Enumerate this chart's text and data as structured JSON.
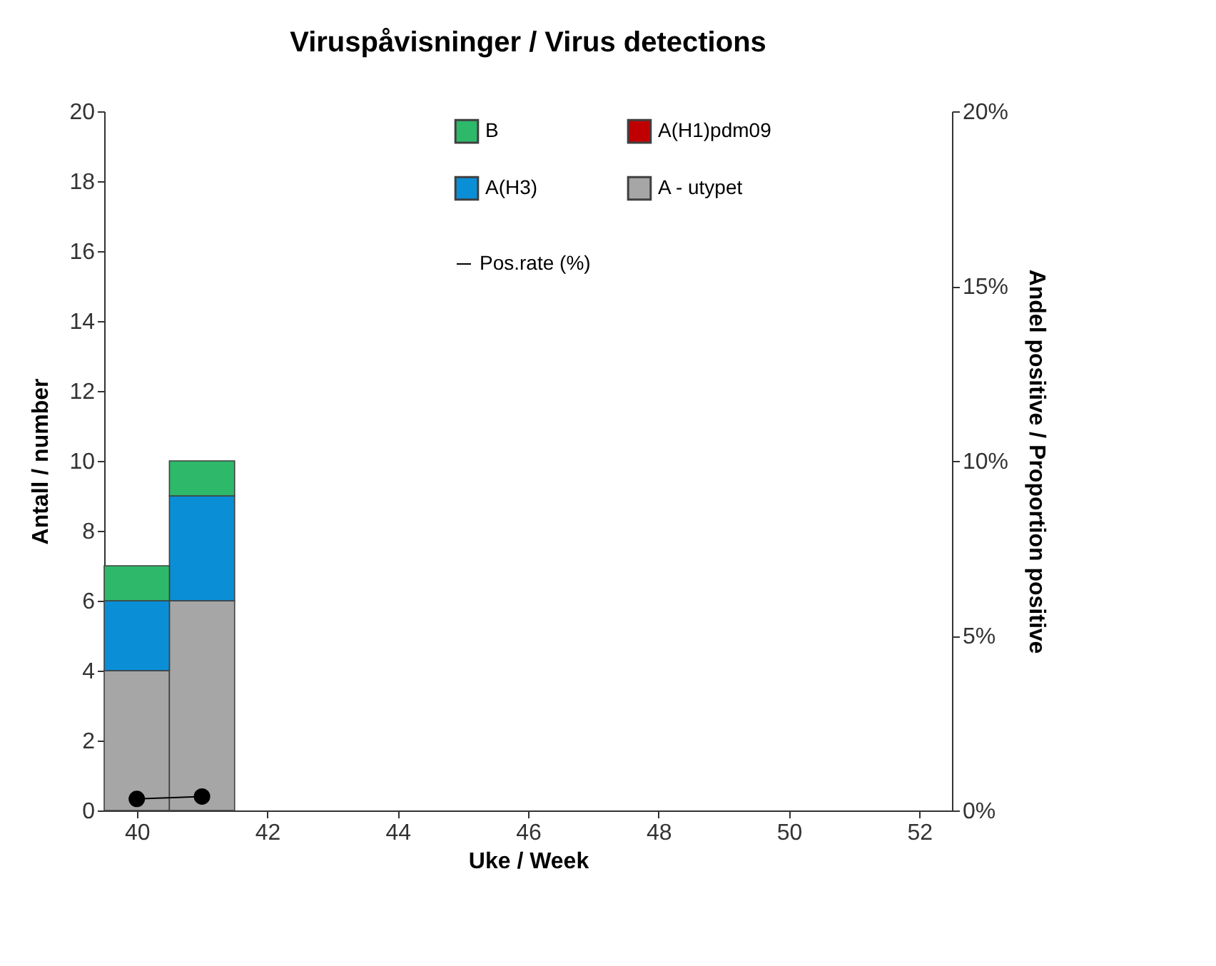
{
  "chart_data": {
    "type": "bar",
    "title": "Viruspåvisninger / Virus detections",
    "xlabel": "Uke / Week",
    "ylabel": "Antall / number",
    "y2label": "Andel positive / Proportion positive",
    "x": [
      40,
      41
    ],
    "stacked": true,
    "grid": false,
    "legend": "top right",
    "xlim": [
      39.5,
      52.5
    ],
    "xticks": [
      40,
      42,
      44,
      46,
      48,
      50,
      52
    ],
    "ylim": [
      0,
      20
    ],
    "yticks": [
      0,
      2,
      4,
      6,
      8,
      10,
      12,
      14,
      16,
      18,
      20
    ],
    "y2lim": [
      0,
      20
    ],
    "y2ticks": [
      {
        "value": 0,
        "label": "0%"
      },
      {
        "value": 5,
        "label": "5%"
      },
      {
        "value": 10,
        "label": "10%"
      },
      {
        "value": 15,
        "label": "15%"
      },
      {
        "value": 20,
        "label": "20%"
      }
    ],
    "series": [
      {
        "name": "A - utypet",
        "color": "#a6a6a6",
        "values": [
          4,
          6
        ]
      },
      {
        "name": "A(H1)pdm09",
        "color": "#c00000",
        "values": [
          0,
          0
        ]
      },
      {
        "name": "A(H3)",
        "color": "#0a8fd6",
        "values": [
          2,
          3
        ]
      },
      {
        "name": "B",
        "color": "#2eb86a",
        "values": [
          1,
          1
        ]
      },
      {
        "name": "Pos.rate (%)",
        "type": "line",
        "axis": "y2",
        "color": "#000000",
        "marker": "circle",
        "line_style": "solid",
        "values": [
          0.33,
          0.4
        ]
      }
    ]
  }
}
